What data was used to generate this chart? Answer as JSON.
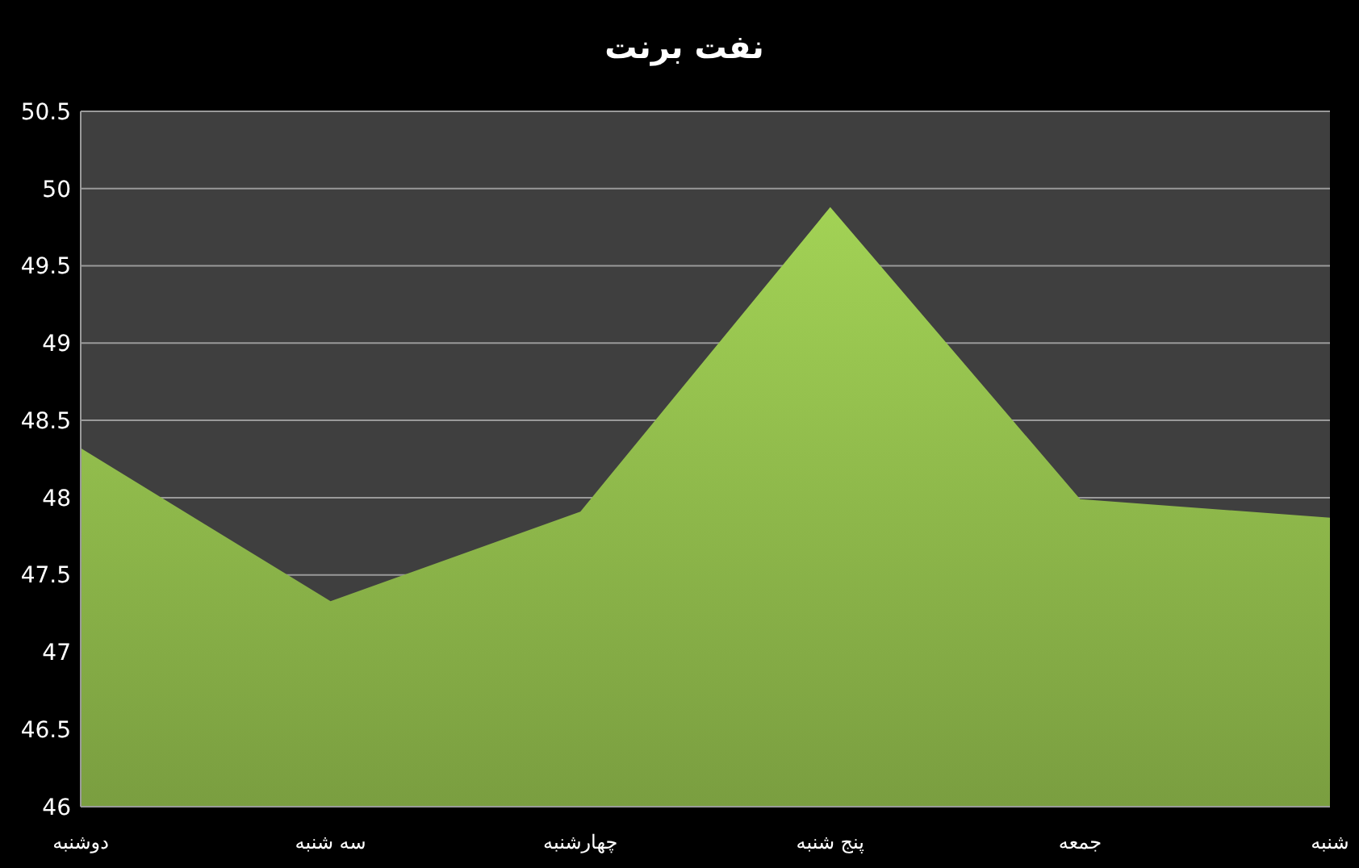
{
  "chart_data": {
    "type": "area",
    "title": "نفت برنت",
    "categories": [
      "دوشنبه",
      "سه شنبه",
      "چهارشنبه",
      "پنج شنبه",
      "جمعه",
      "شنبه"
    ],
    "values": [
      48.32,
      47.33,
      47.91,
      49.88,
      47.99,
      47.87
    ],
    "color": "#92bd4c",
    "ylim": [
      46,
      50.5
    ],
    "yticks": [
      46,
      46.5,
      47,
      47.5,
      48,
      48.5,
      49,
      49.5,
      50,
      50.5
    ],
    "grid": "y"
  }
}
